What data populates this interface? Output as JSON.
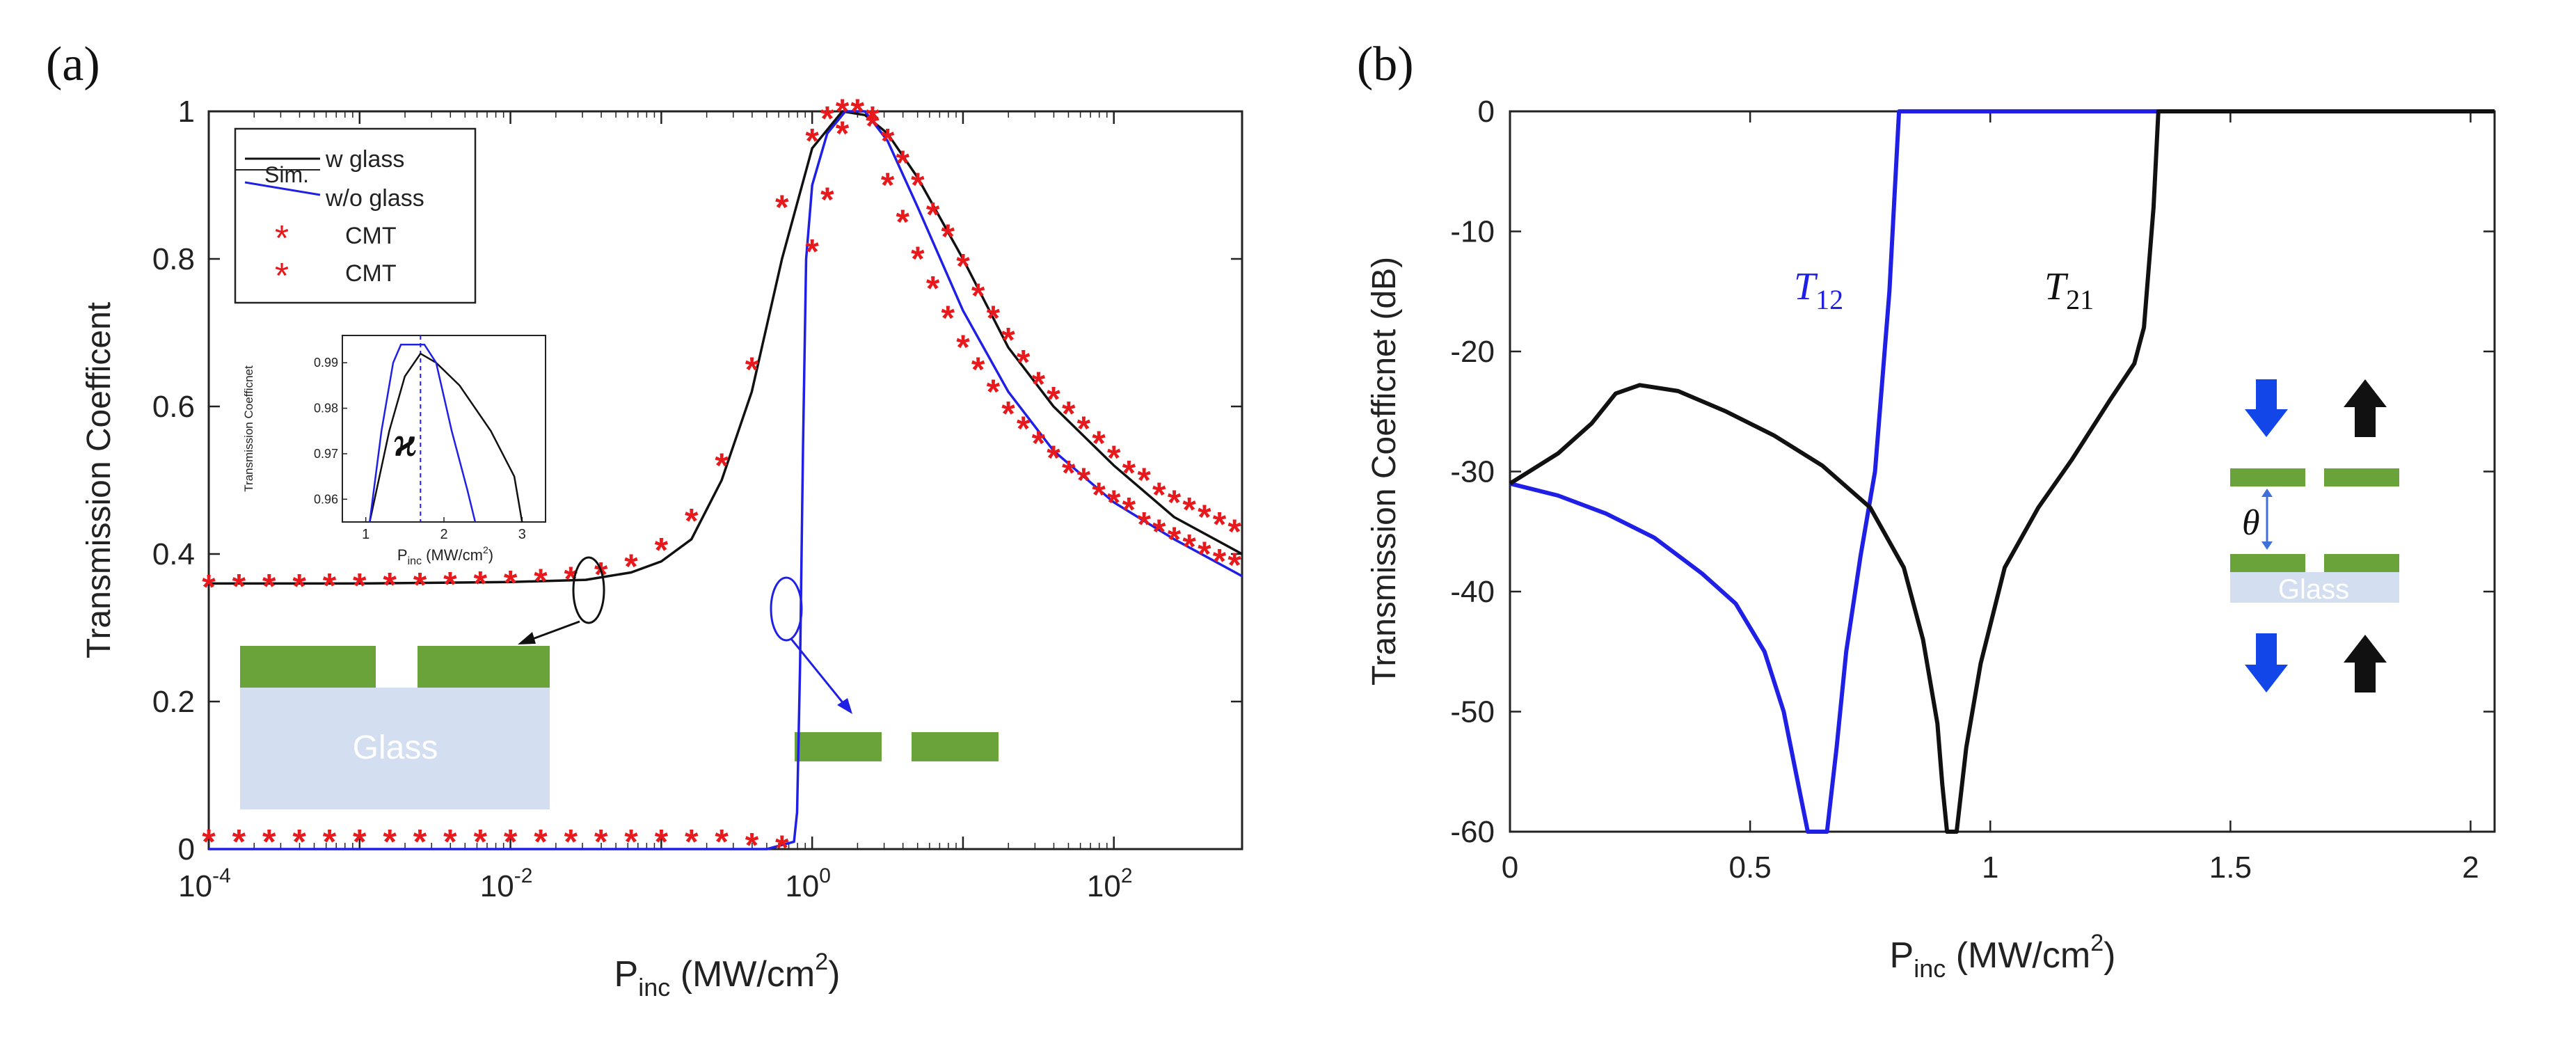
{
  "colors": {
    "black": "#111111",
    "blue": "#1f1fe6",
    "red": "#e8191c",
    "green": "#6aa33a",
    "glass": "#d3dff0",
    "arrow_blue": "#1346e8"
  },
  "chart_data": [
    {
      "panel_label": "(a)",
      "type": "line",
      "x_scale": "log10",
      "xlim": [
        -4,
        2.85
      ],
      "ylim": [
        0,
        1
      ],
      "xlabel": {
        "main": "P",
        "sub": "inc",
        "units": "(MW/cm",
        "sup": "2",
        "close": ")"
      },
      "ylabel": "Transmission Coefficent",
      "x_ticks": [
        {
          "exp": -4,
          "base": "10",
          "sup": "-4"
        },
        {
          "exp": -2,
          "base": "10",
          "sup": "-2"
        },
        {
          "exp": 0,
          "base": "10",
          "sup": "0"
        },
        {
          "exp": 2,
          "base": "10",
          "sup": "2"
        }
      ],
      "y_ticks": [
        {
          "value": 0,
          "label": "0"
        },
        {
          "value": 0.2,
          "label": "0.2"
        },
        {
          "value": 0.4,
          "label": "0.4"
        },
        {
          "value": 0.6,
          "label": "0.6"
        },
        {
          "value": 0.8,
          "label": "0.8"
        },
        {
          "value": 1,
          "label": "1"
        }
      ],
      "legend": {
        "position": "top-left",
        "sim_label": "Sim.",
        "entries": [
          "w glass",
          "w/o glass",
          "CMT",
          "CMT"
        ]
      },
      "series": [
        {
          "name": "w glass (Sim.)",
          "style": "line",
          "color": "black",
          "points": [
            [
              -4,
              0.36
            ],
            [
              -3,
              0.36
            ],
            [
              -2,
              0.362
            ],
            [
              -1.5,
              0.365
            ],
            [
              -1.2,
              0.375
            ],
            [
              -1,
              0.39
            ],
            [
              -0.8,
              0.42
            ],
            [
              -0.6,
              0.5
            ],
            [
              -0.4,
              0.62
            ],
            [
              -0.2,
              0.8
            ],
            [
              0,
              0.95
            ],
            [
              0.2,
              1.0
            ],
            [
              0.35,
              0.995
            ],
            [
              0.5,
              0.97
            ],
            [
              0.7,
              0.91
            ],
            [
              1,
              0.8
            ],
            [
              1.3,
              0.68
            ],
            [
              1.6,
              0.6
            ],
            [
              2,
              0.52
            ],
            [
              2.4,
              0.45
            ],
            [
              2.85,
              0.4
            ]
          ]
        },
        {
          "name": "w/o glass (Sim.)",
          "style": "line",
          "color": "blue",
          "points": [
            [
              -4,
              0
            ],
            [
              -1,
              0
            ],
            [
              -0.3,
              0
            ],
            [
              -0.12,
              0.01
            ],
            [
              -0.1,
              0.05
            ],
            [
              -0.08,
              0.25
            ],
            [
              -0.06,
              0.55
            ],
            [
              -0.04,
              0.8
            ],
            [
              0,
              0.9
            ],
            [
              0.1,
              0.97
            ],
            [
              0.22,
              1.0
            ],
            [
              0.35,
              1.0
            ],
            [
              0.5,
              0.96
            ],
            [
              0.7,
              0.87
            ],
            [
              1,
              0.73
            ],
            [
              1.3,
              0.62
            ],
            [
              1.6,
              0.54
            ],
            [
              2,
              0.47
            ],
            [
              2.4,
              0.42
            ],
            [
              2.85,
              0.37
            ]
          ]
        },
        {
          "name": "CMT (w glass)",
          "style": "markers",
          "color": "red",
          "points": [
            [
              -4,
              0.355
            ],
            [
              -3.8,
              0.356
            ],
            [
              -3.6,
              0.356
            ],
            [
              -3.4,
              0.356
            ],
            [
              -3.2,
              0.357
            ],
            [
              -3,
              0.357
            ],
            [
              -2.8,
              0.358
            ],
            [
              -2.6,
              0.358
            ],
            [
              -2.4,
              0.359
            ],
            [
              -2.2,
              0.36
            ],
            [
              -2,
              0.361
            ],
            [
              -1.8,
              0.363
            ],
            [
              -1.6,
              0.366
            ],
            [
              -1.4,
              0.372
            ],
            [
              -1.2,
              0.383
            ],
            [
              -1,
              0.405
            ],
            [
              -0.8,
              0.445
            ],
            [
              -0.6,
              0.52
            ],
            [
              -0.4,
              0.65
            ],
            [
              -0.2,
              0.87
            ],
            [
              0,
              0.96
            ],
            [
              0.1,
              0.99
            ],
            [
              0.2,
              1.0
            ],
            [
              0.3,
              1.0
            ],
            [
              0.4,
              0.99
            ],
            [
              0.5,
              0.96
            ],
            [
              0.6,
              0.93
            ],
            [
              0.7,
              0.9
            ],
            [
              0.8,
              0.86
            ],
            [
              0.9,
              0.83
            ],
            [
              1,
              0.79
            ],
            [
              1.1,
              0.75
            ],
            [
              1.2,
              0.72
            ],
            [
              1.3,
              0.69
            ],
            [
              1.4,
              0.66
            ],
            [
              1.5,
              0.63
            ],
            [
              1.6,
              0.61
            ],
            [
              1.7,
              0.59
            ],
            [
              1.8,
              0.57
            ],
            [
              1.9,
              0.55
            ],
            [
              2,
              0.53
            ],
            [
              2.1,
              0.51
            ],
            [
              2.2,
              0.5
            ],
            [
              2.3,
              0.48
            ],
            [
              2.4,
              0.47
            ],
            [
              2.5,
              0.46
            ],
            [
              2.6,
              0.45
            ],
            [
              2.7,
              0.44
            ],
            [
              2.8,
              0.43
            ]
          ]
        },
        {
          "name": "CMT (w/o glass)",
          "style": "markers",
          "color": "red",
          "points": [
            [
              -4,
              0.01
            ],
            [
              -3.8,
              0.01
            ],
            [
              -3.6,
              0.01
            ],
            [
              -3.4,
              0.01
            ],
            [
              -3.2,
              0.01
            ],
            [
              -3,
              0.01
            ],
            [
              -2.8,
              0.01
            ],
            [
              -2.6,
              0.01
            ],
            [
              -2.4,
              0.01
            ],
            [
              -2.2,
              0.01
            ],
            [
              -2,
              0.01
            ],
            [
              -1.8,
              0.01
            ],
            [
              -1.6,
              0.01
            ],
            [
              -1.4,
              0.01
            ],
            [
              -1.2,
              0.01
            ],
            [
              -1,
              0.01
            ],
            [
              -0.8,
              0.01
            ],
            [
              -0.6,
              0.01
            ],
            [
              -0.4,
              0.005
            ],
            [
              -0.2,
              0.002
            ],
            [
              0,
              0.81
            ],
            [
              0.1,
              0.88
            ],
            [
              0.2,
              0.97
            ],
            [
              0.3,
              1.0
            ],
            [
              0.4,
              0.98
            ],
            [
              0.5,
              0.9
            ],
            [
              0.6,
              0.85
            ],
            [
              0.7,
              0.8
            ],
            [
              0.8,
              0.76
            ],
            [
              0.9,
              0.72
            ],
            [
              1,
              0.68
            ],
            [
              1.1,
              0.65
            ],
            [
              1.2,
              0.62
            ],
            [
              1.3,
              0.59
            ],
            [
              1.4,
              0.57
            ],
            [
              1.5,
              0.55
            ],
            [
              1.6,
              0.53
            ],
            [
              1.7,
              0.51
            ],
            [
              1.8,
              0.5
            ],
            [
              1.9,
              0.48
            ],
            [
              2,
              0.47
            ],
            [
              2.1,
              0.46
            ],
            [
              2.2,
              0.44
            ],
            [
              2.3,
              0.43
            ],
            [
              2.4,
              0.42
            ],
            [
              2.5,
              0.41
            ],
            [
              2.6,
              0.4
            ],
            [
              2.7,
              0.39
            ],
            [
              2.8,
              0.385
            ]
          ]
        }
      ],
      "inset": {
        "xlim": [
          0.7,
          3.3
        ],
        "ylim": [
          0.955,
          0.996
        ],
        "xlabel": {
          "main": "P",
          "sub": "inc",
          "units": "(MW/cm",
          "sup": "2",
          "close": ")"
        },
        "ylabel": "Transmission Coefficnet",
        "x_ticks": [
          {
            "value": 1,
            "label": "1"
          },
          {
            "value": 2,
            "label": "2"
          },
          {
            "value": 3,
            "label": "3"
          }
        ],
        "y_ticks": [
          {
            "value": 0.96,
            "label": "0.96"
          },
          {
            "value": 0.97,
            "label": "0.97"
          },
          {
            "value": 0.98,
            "label": "0.98"
          },
          {
            "value": 0.99,
            "label": "0.99"
          }
        ],
        "annotation": "ϰ",
        "dashed_x": 1.7,
        "series": [
          {
            "name": "w glass",
            "color": "black",
            "points": [
              [
                1.05,
                0.955
              ],
              [
                1.3,
                0.975
              ],
              [
                1.5,
                0.987
              ],
              [
                1.7,
                0.992
              ],
              [
                1.9,
                0.99
              ],
              [
                2.2,
                0.985
              ],
              [
                2.6,
                0.975
              ],
              [
                2.9,
                0.965
              ],
              [
                3.0,
                0.955
              ]
            ]
          },
          {
            "name": "w/o glass",
            "color": "blue",
            "points": [
              [
                1.05,
                0.955
              ],
              [
                1.2,
                0.975
              ],
              [
                1.35,
                0.99
              ],
              [
                1.45,
                0.994
              ],
              [
                1.75,
                0.994
              ],
              [
                1.9,
                0.99
              ],
              [
                2.1,
                0.975
              ],
              [
                2.3,
                0.962
              ],
              [
                2.4,
                0.955
              ]
            ]
          }
        ]
      },
      "overlay_labels": {
        "glass": "Glass"
      }
    },
    {
      "panel_label": "(b)",
      "type": "line",
      "xlim": [
        0,
        2.05
      ],
      "ylim": [
        -60,
        0
      ],
      "xlabel": {
        "main": "P",
        "sub": "inc",
        "units": "(MW/cm",
        "sup": "2",
        "close": ")"
      },
      "ylabel": "Transmission Coefficnet (dB)",
      "x_ticks": [
        {
          "value": 0,
          "label": "0"
        },
        {
          "value": 0.5,
          "label": "0.5"
        },
        {
          "value": 1,
          "label": "1"
        },
        {
          "value": 1.5,
          "label": "1.5"
        },
        {
          "value": 2,
          "label": "2"
        }
      ],
      "y_ticks": [
        {
          "value": 0,
          "label": "0"
        },
        {
          "value": -10,
          "label": "-10"
        },
        {
          "value": -20,
          "label": "-20"
        },
        {
          "value": -30,
          "label": "-30"
        },
        {
          "value": -40,
          "label": "-40"
        },
        {
          "value": -50,
          "label": "-50"
        },
        {
          "value": -60,
          "label": "-60"
        }
      ],
      "series": [
        {
          "name": "T12",
          "label_base": "T",
          "label_sub": "12",
          "color": "blue",
          "points": [
            [
              0,
              -31
            ],
            [
              0.1,
              -32
            ],
            [
              0.2,
              -33.5
            ],
            [
              0.3,
              -35.5
            ],
            [
              0.4,
              -38.5
            ],
            [
              0.47,
              -41
            ],
            [
              0.53,
              -45
            ],
            [
              0.57,
              -50
            ],
            [
              0.6,
              -56
            ],
            [
              0.62,
              -60
            ],
            [
              0.66,
              -60
            ],
            [
              0.68,
              -53
            ],
            [
              0.7,
              -45
            ],
            [
              0.73,
              -37
            ],
            [
              0.76,
              -30
            ],
            [
              0.79,
              -15
            ],
            [
              0.81,
              0
            ],
            [
              2.05,
              0
            ]
          ]
        },
        {
          "name": "T21",
          "label_base": "T",
          "label_sub": "21",
          "color": "black",
          "points": [
            [
              0,
              -31
            ],
            [
              0.1,
              -28.5
            ],
            [
              0.17,
              -26
            ],
            [
              0.22,
              -23.5
            ],
            [
              0.27,
              -22.8
            ],
            [
              0.35,
              -23.3
            ],
            [
              0.45,
              -25
            ],
            [
              0.55,
              -27
            ],
            [
              0.65,
              -29.5
            ],
            [
              0.75,
              -33
            ],
            [
              0.82,
              -38
            ],
            [
              0.86,
              -44
            ],
            [
              0.89,
              -51
            ],
            [
              0.9,
              -56
            ],
            [
              0.91,
              -60
            ],
            [
              0.93,
              -60
            ],
            [
              0.95,
              -53
            ],
            [
              0.98,
              -46
            ],
            [
              1.03,
              -38
            ],
            [
              1.1,
              -33
            ],
            [
              1.17,
              -29
            ],
            [
              1.25,
              -24
            ],
            [
              1.3,
              -21
            ],
            [
              1.32,
              -18
            ],
            [
              1.34,
              -8
            ],
            [
              1.35,
              0
            ],
            [
              2.05,
              0
            ]
          ]
        }
      ],
      "overlay_labels": {
        "theta": "θ",
        "glass": "Glass"
      }
    }
  ]
}
